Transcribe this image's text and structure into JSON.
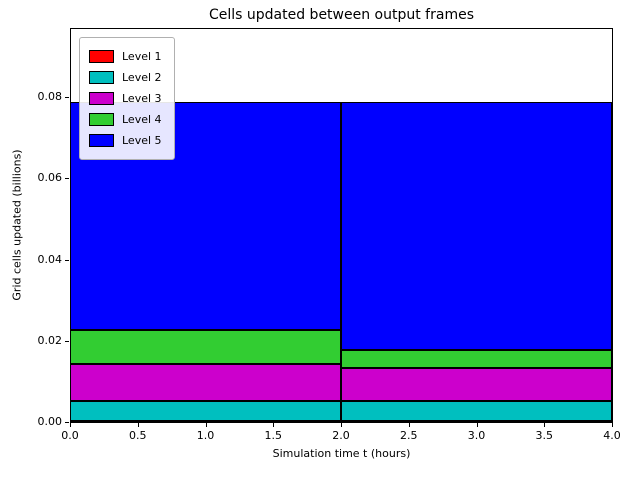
{
  "chart_data": {
    "type": "bar",
    "stacked": true,
    "title": "Cells updated between output frames",
    "xlabel": "Simulation time t (hours)",
    "ylabel": "Grid cells updated (billions)",
    "x_intervals": [
      [
        0,
        2
      ],
      [
        2,
        4
      ]
    ],
    "series": [
      {
        "name": "Level 1",
        "color": "#ff0000",
        "values": [
          0.0002,
          0.0002
        ]
      },
      {
        "name": "Level 2",
        "color": "#00bfbf",
        "values": [
          0.005,
          0.005
        ]
      },
      {
        "name": "Level 3",
        "color": "#cc00cc",
        "values": [
          0.009,
          0.008
        ]
      },
      {
        "name": "Level 4",
        "color": "#32cd32",
        "values": [
          0.0085,
          0.0045
        ]
      },
      {
        "name": "Level 5",
        "color": "#0000ff",
        "values": [
          0.056,
          0.061
        ]
      }
    ],
    "xlim": [
      0,
      4
    ],
    "ylim": [
      0,
      0.097
    ],
    "xticks": [
      0.0,
      0.5,
      1.0,
      1.5,
      2.0,
      2.5,
      3.0,
      3.5,
      4.0
    ],
    "xtick_labels": [
      "0.0",
      "0.5",
      "1.0",
      "1.5",
      "2.0",
      "2.5",
      "3.0",
      "3.5",
      "4.0"
    ],
    "yticks": [
      0.0,
      0.02,
      0.04,
      0.06,
      0.08
    ],
    "ytick_labels": [
      "0.00",
      "0.02",
      "0.04",
      "0.06",
      "0.08"
    ],
    "legend": {
      "position": "upper left"
    },
    "edge_color": "#000000",
    "background": "#ffffff",
    "grid": false
  }
}
